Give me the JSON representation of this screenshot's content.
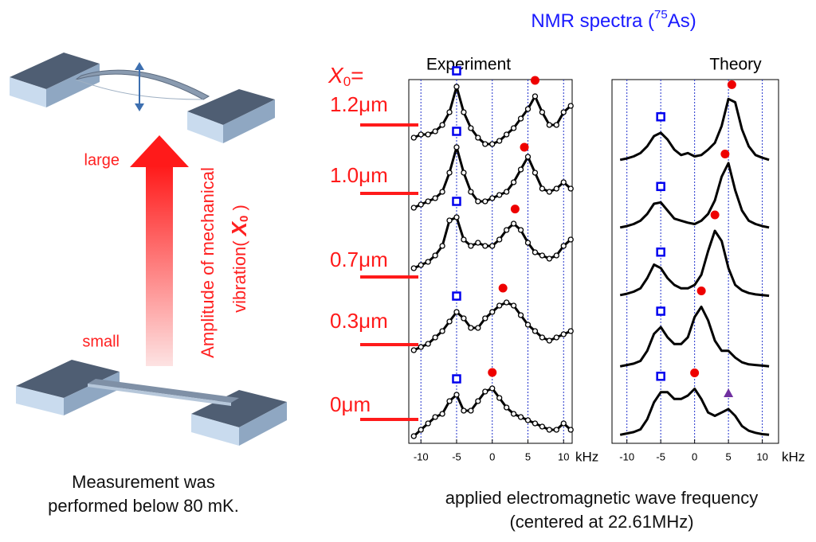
{
  "title_parts": [
    "NMR spectra (",
    "75",
    "As)"
  ],
  "x0_label": [
    "X",
    "0",
    "="
  ],
  "illustration": {
    "large": "large",
    "small": "small",
    "axis_label_1": "Amplitude of mechanical",
    "axis_label_2": [
      "vibration( ",
      "X",
      "0",
      " )"
    ]
  },
  "caption": [
    "Measurement was",
    "performed below 80 mK."
  ],
  "footer": [
    "applied electromagnetic wave frequency",
    "(centered at 22.61MHz)"
  ],
  "chart_data": [
    {
      "type": "line",
      "title": "Experiment",
      "x_label": "kHz",
      "xlim": [
        -11.7,
        11.2
      ],
      "xticks": [
        -10,
        -5,
        0,
        5,
        10
      ],
      "grid": true,
      "grid_color": "#2233cc",
      "marker": "o",
      "x": [
        -11,
        -10,
        -9,
        -8,
        -7,
        -6,
        -5,
        -4,
        -3,
        -2,
        -1,
        0,
        1,
        2,
        3,
        4,
        5,
        6,
        7,
        8,
        9,
        10,
        11
      ],
      "series": [
        {
          "name": "1.2μm",
          "color": "#000000",
          "values": [
            0.15,
            0.2,
            0.2,
            0.25,
            0.35,
            0.55,
            0.95,
            0.55,
            0.3,
            0.15,
            0.05,
            0.05,
            0.1,
            0.2,
            0.3,
            0.45,
            0.6,
            0.8,
            0.55,
            0.35,
            0.35,
            0.55,
            0.65
          ],
          "peak_marks": [
            {
              "shape": "square",
              "x": -5
            },
            {
              "shape": "circle",
              "x": 6
            }
          ]
        },
        {
          "name": "1.0μm",
          "color": "#000000",
          "values": [
            0.05,
            0.1,
            0.15,
            0.2,
            0.3,
            0.6,
            1.0,
            0.6,
            0.3,
            0.15,
            0.15,
            0.2,
            0.25,
            0.3,
            0.45,
            0.65,
            0.85,
            0.6,
            0.35,
            0.3,
            0.35,
            0.45,
            0.35
          ],
          "peak_marks": [
            {
              "shape": "square",
              "x": -5
            },
            {
              "shape": "circle",
              "x": 4.5
            }
          ]
        },
        {
          "name": "0.7μm",
          "color": "#000000",
          "values": [
            0.1,
            0.15,
            0.2,
            0.3,
            0.45,
            0.85,
            0.9,
            0.55,
            0.45,
            0.5,
            0.45,
            0.45,
            0.55,
            0.7,
            0.8,
            0.7,
            0.5,
            0.35,
            0.3,
            0.25,
            0.3,
            0.45,
            0.55
          ],
          "peak_marks": [
            {
              "shape": "square",
              "x": -5
            },
            {
              "shape": "circle",
              "x": 3.2
            }
          ]
        },
        {
          "name": "0.3μm",
          "color": "#000000",
          "values": [
            0.0,
            0.05,
            0.1,
            0.2,
            0.3,
            0.45,
            0.6,
            0.5,
            0.35,
            0.35,
            0.5,
            0.6,
            0.7,
            0.75,
            0.7,
            0.55,
            0.4,
            0.3,
            0.2,
            0.15,
            0.2,
            0.25,
            0.3
          ],
          "peak_marks": [
            {
              "shape": "square",
              "x": -5
            },
            {
              "shape": "circle",
              "x": 1.5
            }
          ]
        },
        {
          "name": "0μm",
          "color": "#000000",
          "values": [
            0.0,
            0.1,
            0.2,
            0.3,
            0.35,
            0.55,
            0.65,
            0.4,
            0.4,
            0.55,
            0.7,
            0.75,
            0.6,
            0.45,
            0.35,
            0.3,
            0.25,
            0.2,
            0.15,
            0.1,
            0.1,
            0.2,
            0.1
          ],
          "peak_marks": [
            {
              "shape": "square",
              "x": -5
            },
            {
              "shape": "circle",
              "x": 0
            }
          ]
        }
      ]
    },
    {
      "type": "line",
      "title": "Theory",
      "x_label": "kHz",
      "xlim": [
        -12.2,
        12.4
      ],
      "xticks": [
        -10,
        -5,
        0,
        5,
        10
      ],
      "grid": true,
      "grid_color": "#2233cc",
      "x": [
        -11,
        -10,
        -9,
        -8,
        -7,
        -6,
        -5,
        -4,
        -3,
        -2,
        -1,
        0,
        1,
        2,
        3,
        4,
        5,
        6,
        7,
        8,
        9,
        10,
        11
      ],
      "series": [
        {
          "color": "#000000",
          "values": [
            0.05,
            0.07,
            0.1,
            0.15,
            0.25,
            0.4,
            0.45,
            0.35,
            0.2,
            0.12,
            0.15,
            0.1,
            0.12,
            0.2,
            0.3,
            0.55,
            0.95,
            0.9,
            0.5,
            0.25,
            0.12,
            0.08,
            0.05
          ],
          "peak_marks": [
            {
              "shape": "square",
              "x": -5
            },
            {
              "shape": "circle",
              "x": 5.5
            }
          ]
        },
        {
          "color": "#000000",
          "values": [
            0.05,
            0.07,
            0.1,
            0.15,
            0.25,
            0.4,
            0.42,
            0.3,
            0.18,
            0.15,
            0.12,
            0.1,
            0.15,
            0.25,
            0.45,
            0.8,
            1.0,
            0.6,
            0.3,
            0.15,
            0.1,
            0.07,
            0.05
          ],
          "peak_marks": [
            {
              "shape": "square",
              "x": -5
            },
            {
              "shape": "circle",
              "x": 4.5
            }
          ]
        },
        {
          "color": "#000000",
          "values": [
            0.05,
            0.07,
            0.1,
            0.15,
            0.3,
            0.5,
            0.45,
            0.3,
            0.2,
            0.15,
            0.15,
            0.2,
            0.35,
            0.7,
            1.0,
            0.85,
            0.45,
            0.2,
            0.12,
            0.08,
            0.06,
            0.05,
            0.04
          ],
          "peak_marks": [
            {
              "shape": "square",
              "x": -5
            },
            {
              "shape": "circle",
              "x": 3
            }
          ]
        },
        {
          "color": "#000000",
          "values": [
            0.02,
            0.04,
            0.06,
            0.1,
            0.25,
            0.5,
            0.6,
            0.45,
            0.35,
            0.35,
            0.45,
            0.75,
            0.9,
            0.7,
            0.4,
            0.25,
            0.25,
            0.15,
            0.08,
            0.05,
            0.04,
            0.03,
            0.02
          ],
          "peak_marks": [
            {
              "shape": "square",
              "x": -5
            },
            {
              "shape": "circle",
              "x": 1
            }
          ]
        },
        {
          "color": "#000000",
          "values": [
            0.02,
            0.04,
            0.06,
            0.1,
            0.25,
            0.5,
            0.65,
            0.65,
            0.55,
            0.55,
            0.6,
            0.7,
            0.55,
            0.35,
            0.3,
            0.35,
            0.4,
            0.3,
            0.15,
            0.08,
            0.05,
            0.03,
            0.02
          ],
          "peak_marks": [
            {
              "shape": "square",
              "x": -5
            },
            {
              "shape": "circle",
              "x": 0
            },
            {
              "shape": "triangle",
              "x": 5
            }
          ]
        }
      ]
    }
  ]
}
